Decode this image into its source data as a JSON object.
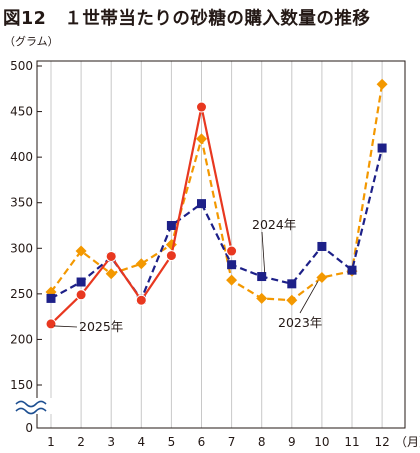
{
  "title": "図12　１世帯当たりの砂糖の購入数量の推移",
  "y_unit": "（グラム）",
  "x_unit": "（月）",
  "colors": {
    "2025": "#e83820",
    "2024": "#1d2088",
    "2023": "#f39800",
    "axis": "#231815",
    "grid": "#c8c8c8",
    "break": "#1d4f91"
  },
  "chart_data": {
    "type": "line",
    "title": "図12　１世帯当たりの砂糖の購入数量の推移",
    "ylabel": "（グラム）",
    "xlabel": "（月）",
    "categories": [
      "1",
      "2",
      "3",
      "4",
      "5",
      "6",
      "7",
      "8",
      "9",
      "10",
      "11",
      "12"
    ],
    "ylim": [
      150,
      500
    ],
    "y_ticks": [
      "500",
      "450",
      "400",
      "350",
      "300",
      "250",
      "200",
      "150",
      "0"
    ],
    "axis_break": "between 0 and 150",
    "grid": "vertical lines at each month",
    "series": [
      {
        "name": "2025年",
        "color": "#e83820",
        "style": "solid",
        "marker": "circle",
        "values": [
          217,
          249,
          291,
          243,
          292,
          455,
          297,
          null,
          null,
          null,
          null,
          null
        ]
      },
      {
        "name": "2024年",
        "color": "#1d2088",
        "style": "dashed",
        "marker": "square",
        "values": [
          245,
          263,
          290,
          244,
          325,
          349,
          282,
          269,
          261,
          302,
          276,
          410
        ]
      },
      {
        "name": "2023年",
        "color": "#f39800",
        "style": "dashed",
        "marker": "diamond",
        "values": [
          252,
          297,
          272,
          283,
          304,
          420,
          265,
          245,
          243,
          268,
          275,
          480
        ]
      }
    ]
  }
}
